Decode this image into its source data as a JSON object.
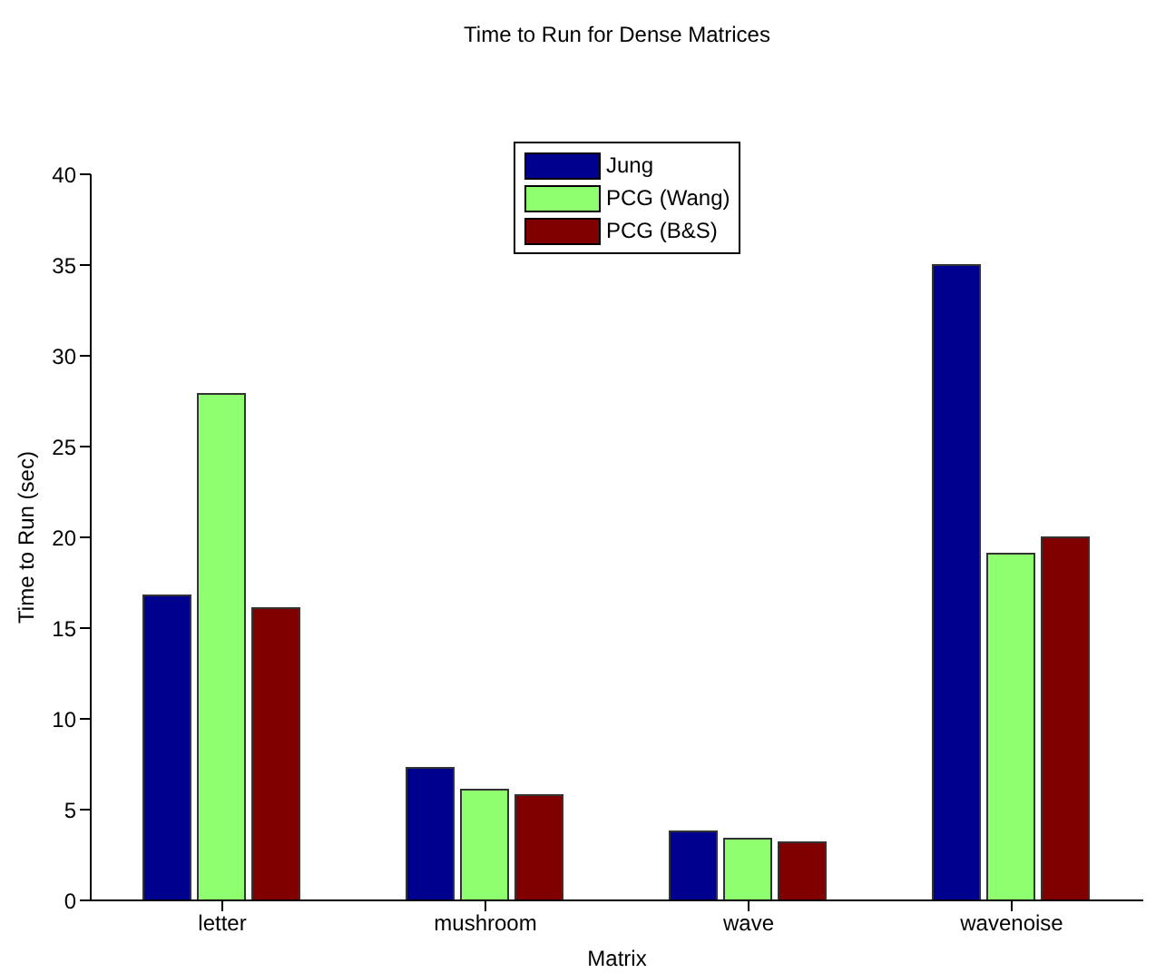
{
  "chart_data": {
    "type": "bar",
    "title": "Time to Run for Dense Matrices",
    "xlabel": "Matrix",
    "ylabel": "Time to Run (sec)",
    "categories": [
      "letter",
      "mushroom",
      "wave",
      "wavenoise"
    ],
    "series": [
      {
        "name": "Jung",
        "color": "#00008f",
        "values": [
          16.8,
          7.3,
          3.8,
          35.0
        ]
      },
      {
        "name": "PCG (Wang)",
        "color": "#8fff6f",
        "values": [
          27.9,
          6.1,
          3.4,
          19.1
        ]
      },
      {
        "name": "PCG (B&S)",
        "color": "#800000",
        "values": [
          16.1,
          5.8,
          3.2,
          20.0
        ]
      }
    ],
    "ylim": [
      0,
      40
    ],
    "yticks": [
      0,
      5,
      10,
      15,
      20,
      25,
      30,
      35,
      40
    ],
    "grid": false,
    "legend": "top"
  }
}
